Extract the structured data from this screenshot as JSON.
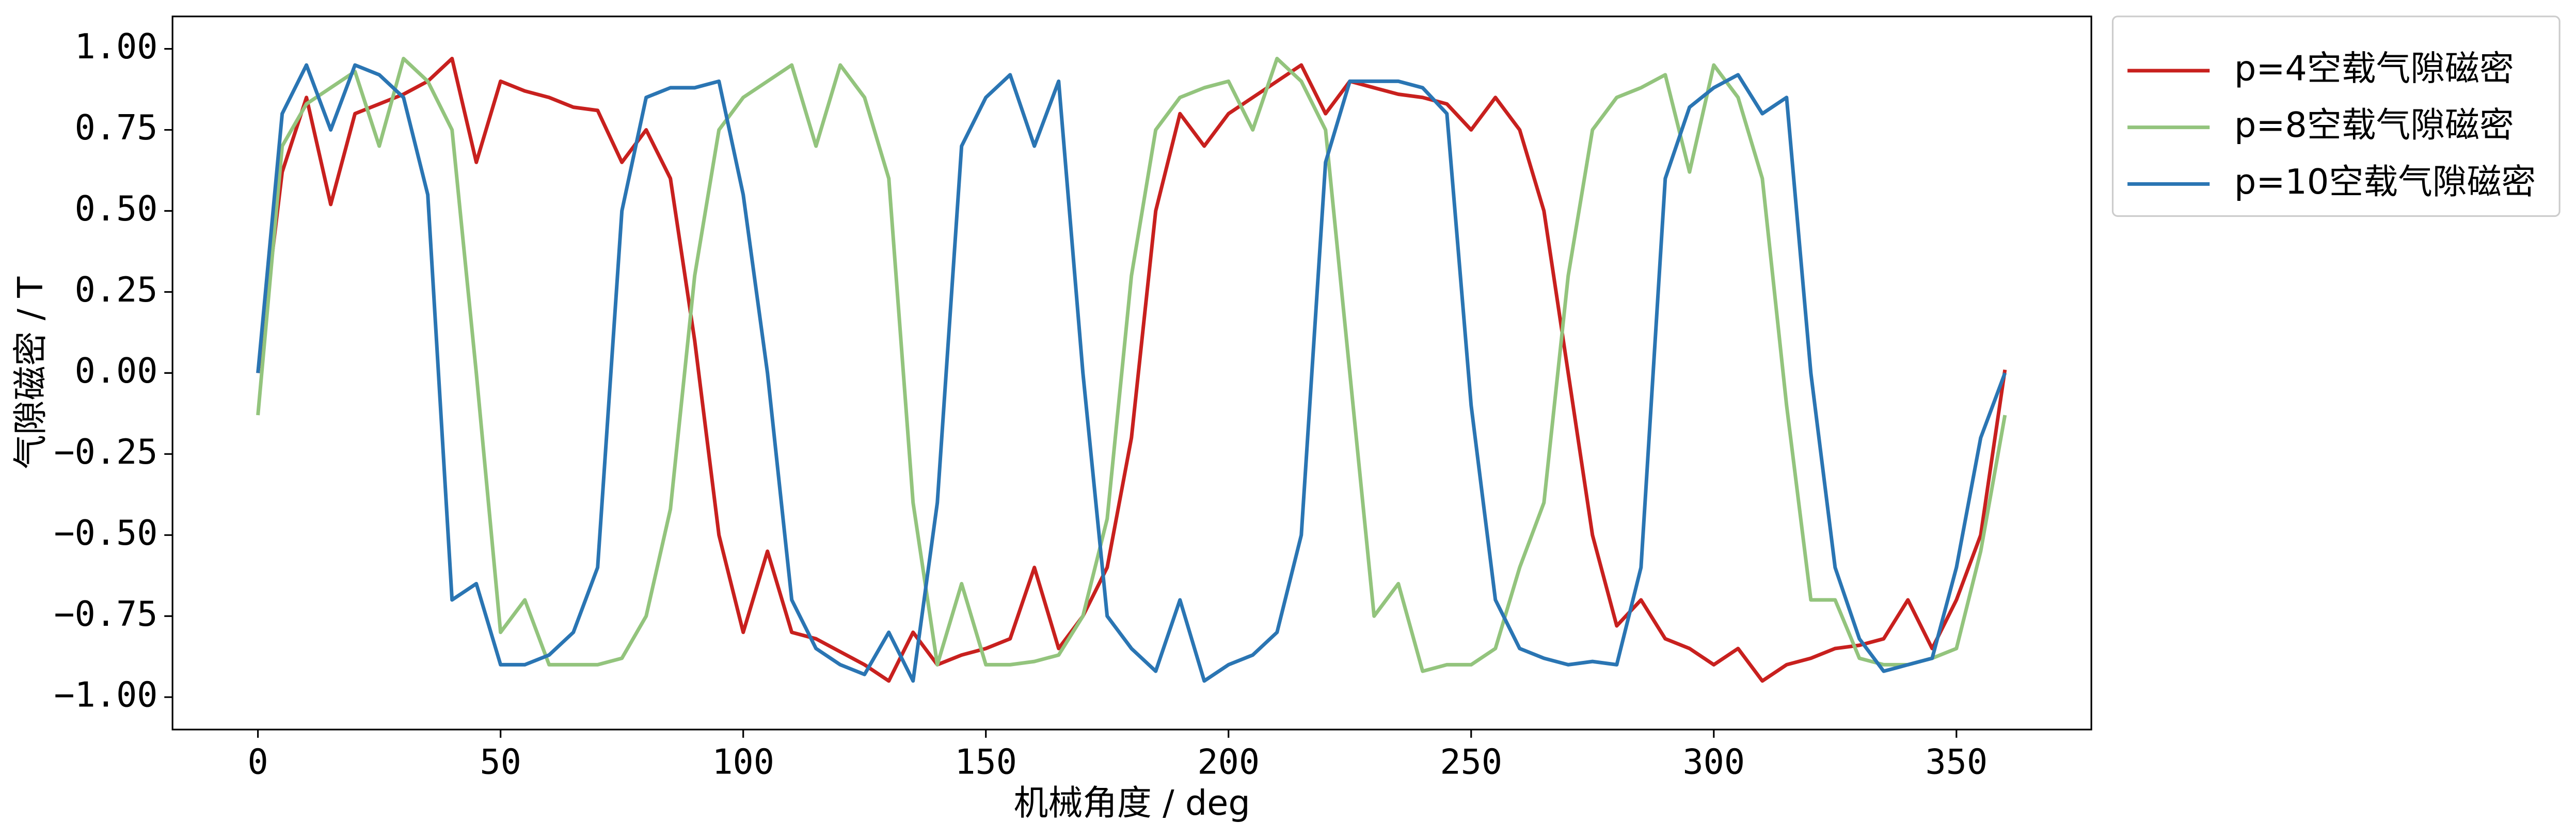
{
  "chart_data": {
    "type": "line",
    "xlabel": "机械角度 / deg",
    "ylabel": "气隙磁密 / T",
    "x": [
      0,
      5,
      10,
      15,
      20,
      25,
      30,
      35,
      40,
      45,
      50,
      55,
      60,
      65,
      70,
      75,
      80,
      85,
      90,
      95,
      100,
      105,
      110,
      115,
      120,
      125,
      130,
      135,
      140,
      145,
      150,
      155,
      160,
      165,
      170,
      175,
      180,
      185,
      190,
      195,
      200,
      205,
      210,
      215,
      220,
      225,
      230,
      235,
      240,
      245,
      250,
      255,
      260,
      265,
      270,
      275,
      280,
      285,
      290,
      295,
      300,
      305,
      310,
      315,
      320,
      325,
      330,
      335,
      340,
      345,
      350,
      355,
      360
    ],
    "series": [
      {
        "name": "p=4空载气隙磁密",
        "color": "#c8201e",
        "values": [
          0,
          0.62,
          0.85,
          0.52,
          0.8,
          0.83,
          0.86,
          0.9,
          0.97,
          0.65,
          0.9,
          0.87,
          0.85,
          0.82,
          0.81,
          0.65,
          0.75,
          0.6,
          0.1,
          -0.5,
          -0.8,
          -0.55,
          -0.8,
          -0.82,
          -0.86,
          -0.9,
          -0.95,
          -0.8,
          -0.9,
          -0.87,
          -0.85,
          -0.82,
          -0.6,
          -0.85,
          -0.75,
          -0.6,
          -0.2,
          0.5,
          0.8,
          0.7,
          0.8,
          0.85,
          0.9,
          0.95,
          0.8,
          0.9,
          0.88,
          0.86,
          0.85,
          0.83,
          0.75,
          0.85,
          0.75,
          0.5,
          0,
          -0.5,
          -0.78,
          -0.7,
          -0.82,
          -0.85,
          -0.9,
          -0.85,
          -0.95,
          -0.9,
          -0.88,
          -0.85,
          -0.84,
          -0.82,
          -0.7,
          -0.85,
          -0.7,
          -0.5,
          0.01
        ]
      },
      {
        "name": "p=8空载气隙磁密",
        "color": "#93c47d",
        "values": [
          -0.13,
          0.7,
          0.83,
          0.88,
          0.93,
          0.7,
          0.97,
          0.9,
          0.75,
          0,
          -0.8,
          -0.7,
          -0.9,
          -0.9,
          -0.9,
          -0.88,
          -0.75,
          -0.42,
          0.3,
          0.75,
          0.85,
          0.9,
          0.95,
          0.7,
          0.95,
          0.85,
          0.6,
          -0.4,
          -0.9,
          -0.65,
          -0.9,
          -0.9,
          -0.89,
          -0.87,
          -0.75,
          -0.45,
          0.3,
          0.75,
          0.85,
          0.88,
          0.9,
          0.75,
          0.97,
          0.9,
          0.75,
          0,
          -0.75,
          -0.65,
          -0.92,
          -0.9,
          -0.9,
          -0.85,
          -0.6,
          -0.4,
          0.3,
          0.75,
          0.85,
          0.88,
          0.92,
          0.62,
          0.95,
          0.85,
          0.6,
          -0.1,
          -0.7,
          -0.7,
          -0.88,
          -0.9,
          -0.9,
          -0.88,
          -0.85,
          -0.55,
          -0.13
        ]
      },
      {
        "name": "p=10空载气隙磁密",
        "color": "#2a75b3",
        "values": [
          0,
          0.8,
          0.95,
          0.75,
          0.95,
          0.92,
          0.85,
          0.55,
          -0.7,
          -0.65,
          -0.9,
          -0.9,
          -0.87,
          -0.8,
          -0.6,
          0.5,
          0.85,
          0.88,
          0.88,
          0.9,
          0.55,
          0,
          -0.7,
          -0.85,
          -0.9,
          -0.93,
          -0.8,
          -0.95,
          -0.4,
          0.7,
          0.85,
          0.92,
          0.7,
          0.9,
          0,
          -0.75,
          -0.85,
          -0.92,
          -0.7,
          -0.95,
          -0.9,
          -0.87,
          -0.8,
          -0.5,
          0.65,
          0.9,
          0.9,
          0.9,
          0.88,
          0.8,
          -0.1,
          -0.7,
          -0.85,
          -0.88,
          -0.9,
          -0.89,
          -0.9,
          -0.6,
          0.6,
          0.82,
          0.88,
          0.92,
          0.8,
          0.85,
          0,
          -0.6,
          -0.82,
          -0.92,
          -0.9,
          -0.88,
          -0.6,
          -0.2,
          0
        ]
      }
    ],
    "xlim": [
      -17.6,
      377.8
    ],
    "ylim": [
      -1.1,
      1.1
    ],
    "xticks": [
      0,
      50,
      100,
      150,
      200,
      250,
      300,
      350
    ],
    "yticks": [
      {
        "value": -1,
        "label": "−1.00"
      },
      {
        "value": -0.75,
        "label": "−0.75"
      },
      {
        "value": -0.5,
        "label": "−0.50"
      },
      {
        "value": -0.25,
        "label": "−0.25"
      },
      {
        "value": 0,
        "label": "0.00"
      },
      0.25,
      {
        "value": 0.5,
        "label": "0.50"
      },
      0.75,
      {
        "value": 1,
        "label": "1.00"
      }
    ],
    "grid": false,
    "legend": "upper right"
  }
}
